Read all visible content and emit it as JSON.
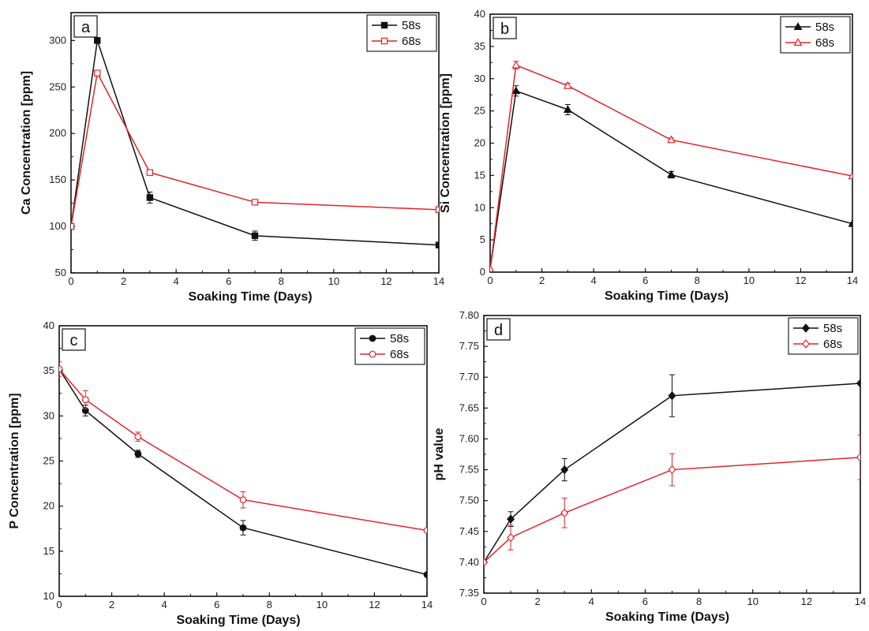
{
  "chart_data": [
    {
      "id": "a",
      "type": "line",
      "panel_label": "a",
      "xlabel": "Soaking Time (Days)",
      "ylabel": "Ca Concentration [ppm]",
      "xlim": [
        0,
        14
      ],
      "ylim": [
        50,
        330
      ],
      "xticks": [
        0,
        2,
        4,
        6,
        8,
        10,
        12,
        14
      ],
      "xtick_labels": [
        "0",
        "2",
        "4",
        "6",
        "8",
        "10",
        "12",
        "14"
      ],
      "yticks": [
        50,
        100,
        150,
        200,
        250,
        300
      ],
      "ytick_labels": [
        "50",
        "100",
        "150",
        "200",
        "250",
        "300"
      ],
      "legend_position": "top-right",
      "grid": false,
      "x": [
        0,
        1,
        3,
        7,
        14
      ],
      "series": [
        {
          "name": "58s",
          "color": "#111111",
          "marker": "filled-square",
          "values": [
            100,
            300,
            131,
            90,
            80
          ],
          "errors": [
            0,
            3,
            6,
            5,
            0
          ]
        },
        {
          "name": "68s",
          "color": "#e0252a",
          "marker": "open-square",
          "values": [
            100,
            265,
            158,
            126,
            118
          ],
          "errors": [
            0,
            3,
            2,
            2,
            0
          ]
        }
      ]
    },
    {
      "id": "b",
      "type": "line",
      "panel_label": "b",
      "xlabel": "Soaking Time (Days)",
      "ylabel": "Si Concentration [ppm]",
      "xlim": [
        0,
        14
      ],
      "ylim": [
        0,
        40
      ],
      "xticks": [
        0,
        2,
        4,
        6,
        8,
        10,
        12,
        14
      ],
      "xtick_labels": [
        "0",
        "2",
        "4",
        "6",
        "8",
        "10",
        "12",
        "14"
      ],
      "yticks": [
        0,
        5,
        10,
        15,
        20,
        25,
        30,
        35,
        40
      ],
      "ytick_labels": [
        "0",
        "5",
        "10",
        "15",
        "20",
        "25",
        "30",
        "35",
        "40"
      ],
      "legend_position": "top-right",
      "grid": false,
      "x": [
        0,
        1,
        3,
        7,
        14
      ],
      "series": [
        {
          "name": "58s",
          "color": "#111111",
          "marker": "filled-triangle",
          "values": [
            0.5,
            28.1,
            25.2,
            15.1,
            7.5
          ],
          "errors": [
            0,
            0.8,
            0.8,
            0.5,
            0
          ]
        },
        {
          "name": "68s",
          "color": "#e0252a",
          "marker": "open-triangle",
          "values": [
            0.5,
            32.1,
            28.9,
            20.5,
            14.9
          ],
          "errors": [
            0,
            0.6,
            0.4,
            0.3,
            0
          ]
        }
      ]
    },
    {
      "id": "c",
      "type": "line",
      "panel_label": "c",
      "xlabel": "Soaking Time (Days)",
      "ylabel": "P Concentration [ppm]",
      "xlim": [
        0,
        14
      ],
      "ylim": [
        10,
        40
      ],
      "xticks": [
        0,
        2,
        4,
        6,
        8,
        10,
        12,
        14
      ],
      "xtick_labels": [
        "0",
        "2",
        "4",
        "6",
        "8",
        "10",
        "12",
        "14"
      ],
      "yticks": [
        10,
        15,
        20,
        25,
        30,
        35,
        40
      ],
      "ytick_labels": [
        "10",
        "15",
        "20",
        "25",
        "30",
        "35",
        "40"
      ],
      "legend_position": "top-right",
      "grid": false,
      "x": [
        0,
        1,
        3,
        7,
        14
      ],
      "series": [
        {
          "name": "58s",
          "color": "#111111",
          "marker": "filled-circle",
          "values": [
            35.2,
            30.6,
            25.8,
            17.6,
            12.4
          ],
          "errors": [
            0,
            0.6,
            0.4,
            0.8,
            0
          ]
        },
        {
          "name": "68s",
          "color": "#e0252a",
          "marker": "open-circle",
          "values": [
            35.2,
            31.8,
            27.7,
            20.7,
            17.3
          ],
          "errors": [
            0.8,
            1.0,
            0.5,
            0.9,
            0
          ]
        }
      ]
    },
    {
      "id": "d",
      "type": "line",
      "panel_label": "d",
      "xlabel": "Soaking Time (Days)",
      "ylabel": "pH value",
      "xlim": [
        0,
        14
      ],
      "ylim": [
        7.35,
        7.8
      ],
      "xticks": [
        0,
        2,
        4,
        6,
        8,
        10,
        12,
        14
      ],
      "xtick_labels": [
        "0",
        "2",
        "4",
        "6",
        "8",
        "10",
        "12",
        "14"
      ],
      "yticks": [
        7.35,
        7.4,
        7.45,
        7.5,
        7.55,
        7.6,
        7.65,
        7.7,
        7.75,
        7.8
      ],
      "ytick_labels": [
        "7.35",
        "7.40",
        "7.45",
        "7.50",
        "7.55",
        "7.60",
        "7.65",
        "7.70",
        "7.75",
        "7.80"
      ],
      "legend_position": "top-right",
      "grid": false,
      "x": [
        0,
        1,
        3,
        7,
        14
      ],
      "series": [
        {
          "name": "58s",
          "color": "#111111",
          "marker": "filled-diamond",
          "values": [
            7.4,
            7.47,
            7.55,
            7.67,
            7.69
          ],
          "errors": [
            0,
            0.012,
            0.018,
            0.034,
            0
          ]
        },
        {
          "name": "68s",
          "color": "#e0252a",
          "marker": "open-diamond",
          "values": [
            7.4,
            7.44,
            7.48,
            7.55,
            7.57
          ],
          "errors": [
            0,
            0.02,
            0.024,
            0.026,
            0.036
          ]
        }
      ]
    }
  ]
}
